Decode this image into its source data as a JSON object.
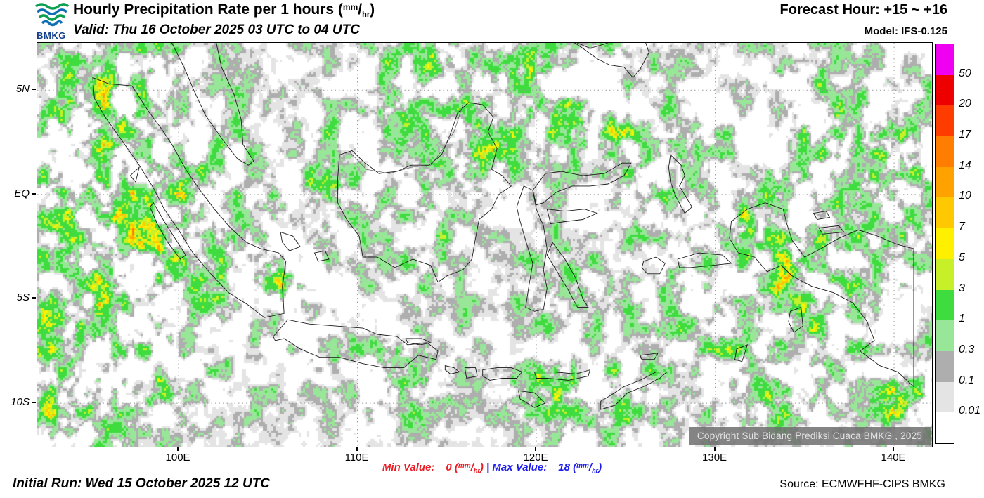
{
  "header": {
    "logo_text": "BMKG",
    "title_main": "Hourly Precipitation Rate per 1 hours (",
    "unit_top": "mm",
    "unit_slash": "/",
    "unit_bottom": "hr",
    "title_close": ")",
    "valid": "Valid: Thu 16 October 2025 03 UTC to 04 UTC",
    "forecast_hour": "Forecast Hour: +15 ~ +16",
    "model": "Model: IFS-0.125"
  },
  "map": {
    "x_ticks": [
      "100E",
      "110E",
      "120E",
      "130E",
      "140E"
    ],
    "y_ticks": [
      "5N",
      "EQ",
      "5S",
      "10S"
    ],
    "copyright": "Copyright Sub Bidang Prediksi Cuaca BMKG , 2025"
  },
  "legend": {
    "labels": [
      "50",
      "20",
      "17",
      "14",
      "10",
      "7",
      "5",
      "3",
      "1",
      "0.3",
      "0.1",
      "0.01"
    ],
    "colors": [
      "#f000f0",
      "#ef0000",
      "#ff3c00",
      "#ff7d00",
      "#ffa200",
      "#ffc800",
      "#fff000",
      "#c8f028",
      "#3fdc3f",
      "#98e698",
      "#aeaeae",
      "#e4e4e4",
      "#ffffff"
    ],
    "thresholds": [
      50,
      20,
      17,
      14,
      10,
      7,
      5,
      3,
      1,
      0.3,
      0.1,
      0.01
    ]
  },
  "footer": {
    "min_label": "Min Value:",
    "min_value": "0",
    "max_label": "Max Value:",
    "max_value": "18",
    "separator": "|",
    "paren_open": "(",
    "paren_close": ")",
    "unit_top": "mm",
    "unit_slash": "/",
    "unit_bottom": "hr",
    "initial_run": "Initial Run: Wed 15 October 2025 12 UTC",
    "source": "Source: ECMWFHF-CIPS BMKG"
  },
  "colors": {
    "min_text": "#ec1c24",
    "max_text": "#1c1cec",
    "coastline": "#1a1a1a",
    "grid": "#999999"
  }
}
